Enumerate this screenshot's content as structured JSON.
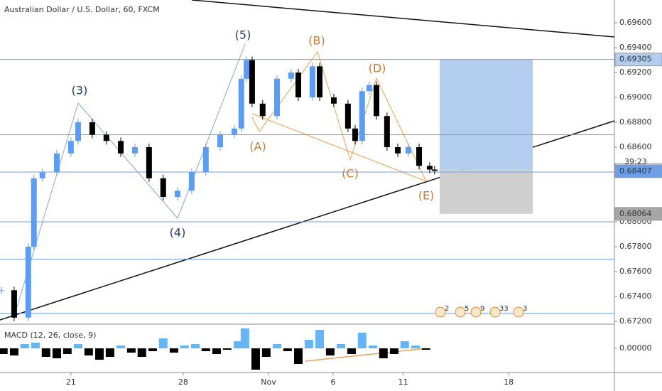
{
  "chart_data": [
    {
      "type": "candlestick",
      "title": "Australian Dollar / U.S. Dollar, 60, FXCM",
      "x": [
        -3.1,
        -2.53,
        -1.9,
        -1.65,
        -1.27,
        -0.63,
        0,
        0.32,
        0.95,
        1.58,
        2.22,
        2.85,
        3.48,
        4.11,
        4.75,
        5.38,
        6.01,
        6.65,
        7.28,
        7.59,
        7.82,
        8.07,
        8.54,
        9.18,
        9.81,
        10.13,
        10.76,
        11.08,
        11.71,
        12.34,
        12.66,
        12.97,
        13.29,
        13.61,
        14.08,
        14.56,
        15.03,
        15.51,
        15.98,
        16.2
      ],
      "series": [
        {
          "color": "#5b9cf6",
          "values": [
            0.6745,
            0.6723,
            0.678,
            0.6835,
            0.684,
            0.6855,
            0.6865,
            0.688,
            0.687,
            0.6865,
            0.6855,
            0.686,
            0.6835,
            0.682,
            0.6825,
            0.684,
            0.686,
            0.687,
            0.6875,
            0.6915,
            0.693,
            0.6895,
            0.6885,
            0.6915,
            0.692,
            0.69,
            0.6925,
            0.69,
            0.6895,
            0.6875,
            0.6865,
            0.6905,
            0.691,
            0.6885,
            0.686,
            0.6855,
            0.686,
            0.6845,
            0.6842,
            0.6841
          ]
        }
      ],
      "xlim": [
        -3.16,
        24.21
      ],
      "xticks": [
        {
          "value": 0,
          "label": "21"
        },
        {
          "value": 5,
          "label": "28"
        },
        {
          "value": 8.8,
          "label": "Nov"
        },
        {
          "value": 11.68,
          "label": "6"
        },
        {
          "value": 14.8,
          "label": "11"
        },
        {
          "value": 19.5,
          "label": "18"
        }
      ],
      "ylim": [
        0.67183,
        0.69783
      ],
      "yticks": [
        {
          "value": 0.696,
          "label": "0.69600"
        },
        {
          "value": 0.694,
          "label": "0.69400"
        },
        {
          "value": 0.692,
          "label": "0.69200"
        },
        {
          "value": 0.69,
          "label": "0.69000"
        },
        {
          "value": 0.688,
          "label": "0.68800"
        },
        {
          "value": 0.686,
          "label": "0.68600"
        },
        {
          "value": 0.68,
          "label": "0.68000"
        },
        {
          "value": 0.678,
          "label": "0.67800"
        },
        {
          "value": 0.676,
          "label": "0.67600"
        },
        {
          "value": 0.674,
          "label": "0.67400"
        },
        {
          "value": 0.672,
          "label": "0.67200"
        }
      ],
      "horizontal_lines": [
        0.69305,
        0.687,
        0.684,
        0.68,
        0.677,
        0.67265
      ],
      "position": {
        "target": {
          "value": 0.69305,
          "label": "0.69305"
        },
        "entry": {
          "value": 0.68418,
          "label": "0.68418"
        },
        "stop": {
          "value": 0.68064,
          "label": "0.68064"
        }
      },
      "last_price": {
        "value": 0.68407,
        "label": "0.68407"
      },
      "countdown": "39:23",
      "wave_labels": [
        "(3)",
        "(4)",
        "(5)",
        "(A)",
        "(B)",
        "(C)",
        "(D)",
        "(E)"
      ],
      "event_counts": [
        2,
        5,
        9,
        33,
        3
      ]
    },
    {
      "type": "histogram",
      "title": "MACD (12, 26, close, 9)",
      "x": [
        -3.01,
        -2.53,
        -2.06,
        -1.58,
        -1.11,
        -0.63,
        -0.16,
        0.32,
        0.79,
        1.27,
        1.74,
        2.22,
        2.69,
        3.16,
        3.64,
        4.11,
        4.59,
        5.06,
        5.54,
        6.01,
        6.49,
        6.96,
        7.44,
        7.75,
        8.23,
        8.7,
        9.18,
        9.65,
        10.13,
        10.6,
        11.08,
        11.55,
        12.03,
        12.5,
        12.97,
        13.45,
        13.92,
        14.4,
        14.87,
        15.35,
        15.82
      ],
      "values": [
        -0.00016,
        -0.0002,
        0.00012,
        0.00016,
        -0.00024,
        -0.00028,
        -0.00016,
        0.00012,
        -0.0002,
        -0.00032,
        -0.00024,
        8e-05,
        -0.00012,
        -0.00024,
        -8e-05,
        0.00028,
        -0.00012,
        8e-05,
        0.00012,
        -8e-05,
        -0.00016,
        -4e-05,
        0.0002,
        0.00056,
        -0.0006,
        -0.00024,
        0.00012,
        -8e-05,
        -0.00044,
        0.00024,
        0.00052,
        -0.0002,
        0.00012,
        -0.00016,
        0.00044,
        8e-05,
        -0.00028,
        -0.00016,
        0.0002,
        8e-05,
        -4e-05
      ],
      "positive_color": "#64b5f6",
      "negative_color": "#000000",
      "ylim": [
        -0.0007,
        0.00064
      ],
      "yticks": [
        {
          "value": 0,
          "label": "0.00000"
        }
      ]
    }
  ]
}
